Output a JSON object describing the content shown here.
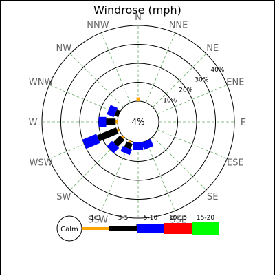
{
  "chart_data": {
    "type": "windrose",
    "title": "Windrose (mph)",
    "directions": [
      "N",
      "NNE",
      "NE",
      "ENE",
      "E",
      "ESE",
      "SE",
      "SSE",
      "S",
      "SSW",
      "SW",
      "WSW",
      "W",
      "WNW",
      "NW",
      "NNW"
    ],
    "ring_labels": [
      "10%",
      "20%",
      "30%",
      "40%"
    ],
    "ring_values": [
      10,
      20,
      30,
      40
    ],
    "center_label": "4%",
    "calm_label": "Calm",
    "bins": [
      {
        "name": "1-3",
        "color": "#ffa500"
      },
      {
        "name": "3-5",
        "color": "#000000"
      },
      {
        "name": "5-10",
        "color": "#0000ff"
      },
      {
        "name": "10-15",
        "color": "#ff0000"
      },
      {
        "name": "15-20",
        "color": "#00ff00"
      }
    ],
    "values": {
      "N": [
        2,
        0,
        0,
        0,
        0
      ],
      "NNE": [
        0,
        0,
        0,
        0,
        0
      ],
      "NE": [
        0,
        0,
        0,
        0,
        0
      ],
      "ENE": [
        0,
        0,
        0,
        0,
        0
      ],
      "E": [
        0,
        0,
        0,
        0,
        0
      ],
      "ESE": [
        0,
        0,
        0,
        0,
        0
      ],
      "SE": [
        0,
        0,
        0,
        0,
        0
      ],
      "SSE": [
        0,
        0,
        4,
        0,
        0
      ],
      "S": [
        0,
        0,
        4,
        0,
        0
      ],
      "SSW": [
        1,
        3,
        3,
        0,
        0
      ],
      "SW": [
        1,
        5,
        4,
        0,
        0
      ],
      "WSW": [
        1,
        11,
        8,
        0,
        0
      ],
      "W": [
        1,
        5,
        4,
        0,
        0
      ],
      "WNW": [
        0,
        2,
        4,
        0,
        0
      ],
      "NW": [
        0,
        0,
        0,
        0,
        0
      ],
      "NNW": [
        0,
        0,
        0,
        0,
        0
      ]
    },
    "grid": true,
    "legend_position": "bottom"
  }
}
